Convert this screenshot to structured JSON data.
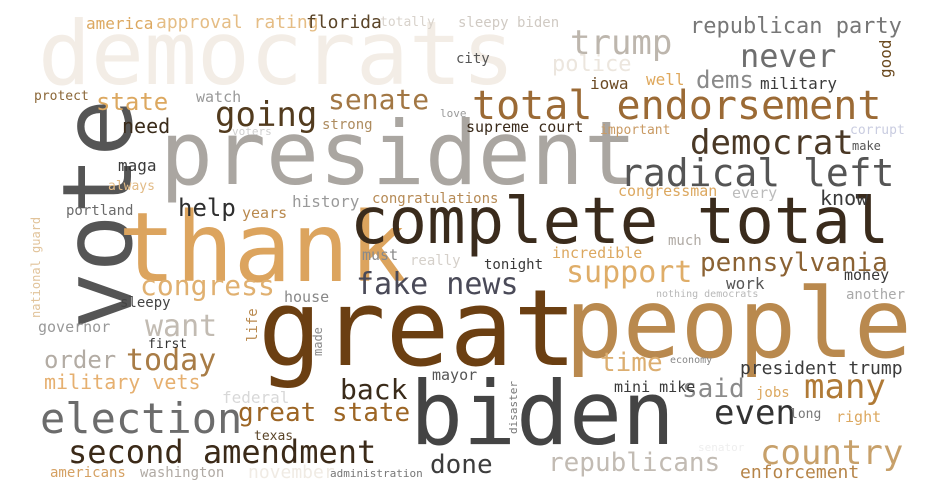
{
  "words": [
    {
      "text": "democrats",
      "color": "#f3ede6"
    },
    {
      "text": "president",
      "color": "#aaa6a1"
    },
    {
      "text": "vote",
      "color": "#555555"
    },
    {
      "text": "thank",
      "color": "#dca45e"
    },
    {
      "text": "complete total",
      "color": "#3a2b1c"
    },
    {
      "text": "great",
      "color": "#6b3f12"
    },
    {
      "text": "people",
      "color": "#b9894e"
    },
    {
      "text": "biden",
      "color": "#444444"
    },
    {
      "text": "total endorsement",
      "color": "#9b6a35"
    },
    {
      "text": "radical left",
      "color": "#555555"
    },
    {
      "text": "democrat",
      "color": "#4a3825"
    },
    {
      "text": "election",
      "color": "#6c6c6c"
    },
    {
      "text": "second amendment",
      "color": "#3b2a18"
    },
    {
      "text": "country",
      "color": "#c7a06a"
    },
    {
      "text": "trump",
      "color": "#bdb6ad"
    },
    {
      "text": "never",
      "color": "#6e6e6e"
    },
    {
      "text": "republican party",
      "color": "#777777"
    },
    {
      "text": "going",
      "color": "#523b1e"
    },
    {
      "text": "senate",
      "color": "#a27744"
    },
    {
      "text": "fake news",
      "color": "#4a4a58"
    },
    {
      "text": "pennsylvania",
      "color": "#8b6233"
    },
    {
      "text": "support",
      "color": "#dfad68"
    },
    {
      "text": "congress",
      "color": "#e0b070"
    },
    {
      "text": "want",
      "color": "#c2bbb2"
    },
    {
      "text": "today",
      "color": "#a87c46"
    },
    {
      "text": "many",
      "color": "#b07a36"
    },
    {
      "text": "even",
      "color": "#333333"
    },
    {
      "text": "great state",
      "color": "#9c6524"
    },
    {
      "text": "republicans",
      "color": "#c2bbb3"
    },
    {
      "text": "done",
      "color": "#3d3d3d"
    },
    {
      "text": "back",
      "color": "#3a2b1a"
    },
    {
      "text": "time",
      "color": "#dcae70"
    },
    {
      "text": "military vets",
      "color": "#e6b070"
    },
    {
      "text": "order",
      "color": "#b3aca4"
    },
    {
      "text": "state",
      "color": "#dca860"
    },
    {
      "text": "dems",
      "color": "#8a8a8a"
    },
    {
      "text": "help",
      "color": "#2e2e2e"
    },
    {
      "text": "police",
      "color": "#ece6de"
    },
    {
      "text": "need",
      "color": "#3a2b1a"
    },
    {
      "text": "know",
      "color": "#3a3a3a"
    },
    {
      "text": "said",
      "color": "#8a8a8a"
    },
    {
      "text": "enforcement",
      "color": "#b68448"
    },
    {
      "text": "president trump",
      "color": "#3b3b3b"
    },
    {
      "text": "americans",
      "color": "#d5a163"
    },
    {
      "text": "washington",
      "color": "#b0aaa4"
    },
    {
      "text": "november",
      "color": "#f0ebe4"
    },
    {
      "text": "administration",
      "color": "#777777"
    },
    {
      "text": "america",
      "color": "#dca860"
    },
    {
      "text": "approval rating",
      "color": "#e5bd85"
    },
    {
      "text": "florida",
      "color": "#5a4428"
    },
    {
      "text": "totally",
      "color": "#d8d2cb"
    },
    {
      "text": "sleepy biden",
      "color": "#d0cac3"
    },
    {
      "text": "city",
      "color": "#555555"
    },
    {
      "text": "good",
      "color": "#6b4a1f"
    },
    {
      "text": "iowa",
      "color": "#6b4a24"
    },
    {
      "text": "well",
      "color": "#dfa85c"
    },
    {
      "text": "military",
      "color": "#3b3b3b"
    },
    {
      "text": "protect",
      "color": "#8b6738"
    },
    {
      "text": "watch",
      "color": "#999999"
    },
    {
      "text": "strong",
      "color": "#ad8b5e"
    },
    {
      "text": "love",
      "color": "#9a9a9a"
    },
    {
      "text": "supreme court",
      "color": "#3a2a1a"
    },
    {
      "text": "important",
      "color": "#c99a63"
    },
    {
      "text": "corrupt",
      "color": "#c9cce0"
    },
    {
      "text": "make",
      "color": "#555555"
    },
    {
      "text": "voters",
      "color": "#cfcfcf"
    },
    {
      "text": "maga",
      "color": "#3a3a3a"
    },
    {
      "text": "always",
      "color": "#e2bb86"
    },
    {
      "text": "congressman",
      "color": "#dca860"
    },
    {
      "text": "every",
      "color": "#bbbbbb"
    },
    {
      "text": "history",
      "color": "#9a9a9a"
    },
    {
      "text": "congratulations",
      "color": "#b68a55"
    },
    {
      "text": "portland",
      "color": "#6b6b6b"
    },
    {
      "text": "years",
      "color": "#b9894e"
    },
    {
      "text": "national guard",
      "color": "#e1c39a"
    },
    {
      "text": "must",
      "color": "#8a8a8a"
    },
    {
      "text": "really",
      "color": "#d5d0ca"
    },
    {
      "text": "incredible",
      "color": "#dca860"
    },
    {
      "text": "much",
      "color": "#b0aaa4"
    },
    {
      "text": "tonight",
      "color": "#3a3a3a"
    },
    {
      "text": "work",
      "color": "#555555"
    },
    {
      "text": "money",
      "color": "#3a3a3a"
    },
    {
      "text": "sleepy",
      "color": "#444444"
    },
    {
      "text": "house",
      "color": "#888888"
    },
    {
      "text": "nothing democrats",
      "color": "#b8b8b8"
    },
    {
      "text": "another",
      "color": "#aaaaaa"
    },
    {
      "text": "governor",
      "color": "#999999"
    },
    {
      "text": "life",
      "color": "#b9894e"
    },
    {
      "text": "made",
      "color": "#8a8a8a"
    },
    {
      "text": "first",
      "color": "#333333"
    },
    {
      "text": "economy",
      "color": "#888888"
    },
    {
      "text": "mayor",
      "color": "#555555"
    },
    {
      "text": "mini mike",
      "color": "#3a3a3a"
    },
    {
      "text": "jobs",
      "color": "#dca860"
    },
    {
      "text": "federal",
      "color": "#d8d8d8"
    },
    {
      "text": "disaster",
      "color": "#777777"
    },
    {
      "text": "texas",
      "color": "#5a4428"
    },
    {
      "text": "long",
      "color": "#777777"
    },
    {
      "text": "right",
      "color": "#dca860"
    },
    {
      "text": "senator",
      "color": "#eeeeee"
    }
  ]
}
